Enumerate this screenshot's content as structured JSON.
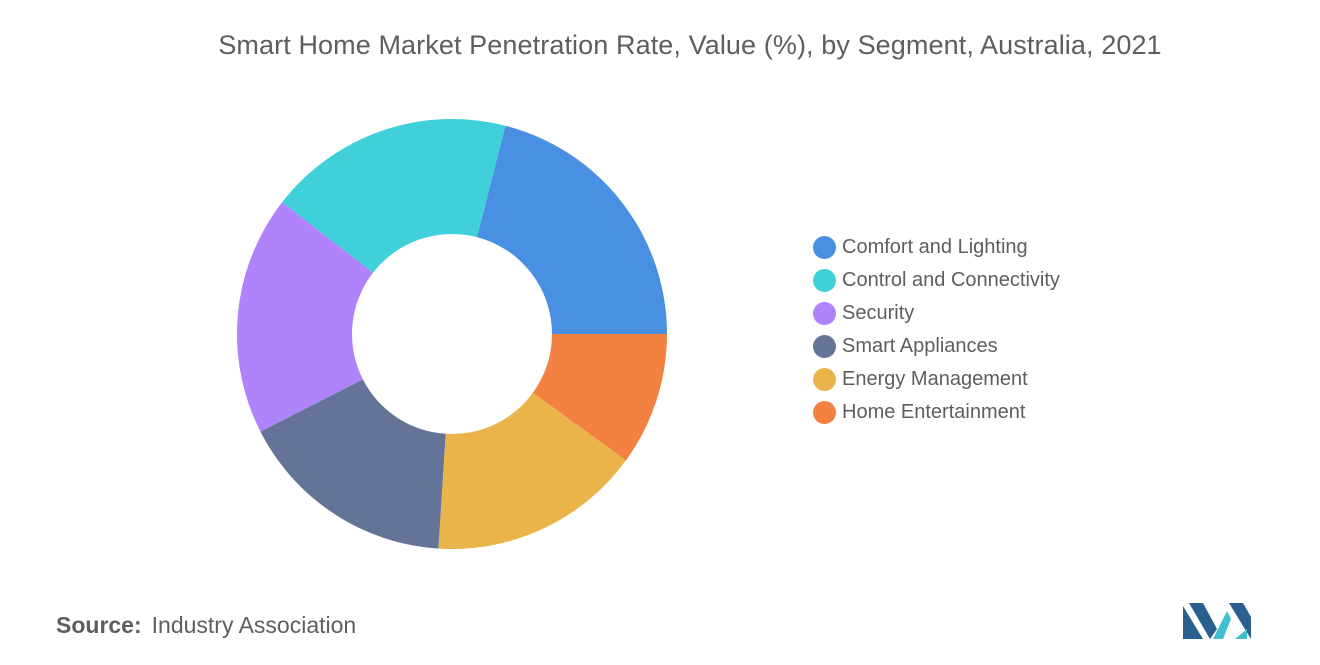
{
  "chart_data": {
    "type": "pie",
    "title": "Smart Home Market Penetration Rate, Value (%), by Segment, Australia, 2021",
    "categories": [
      "Comfort and Lighting",
      "Control and Connectivity",
      "Security",
      "Smart Appliances",
      "Energy Management",
      "Home Entertainment"
    ],
    "values": [
      21,
      18.5,
      18,
      16.5,
      16,
      10
    ],
    "colors": [
      "#4a90e2",
      "#40d0da",
      "#b083fc",
      "#647498",
      "#ebb44b",
      "#f28142"
    ],
    "legend_position": "right"
  },
  "source": {
    "label": "Source:",
    "text": "Industry Association"
  },
  "logo": {
    "icon": "mordor-intelligence-logo",
    "colors": [
      "#2b5f8e",
      "#3fbfcf"
    ]
  }
}
